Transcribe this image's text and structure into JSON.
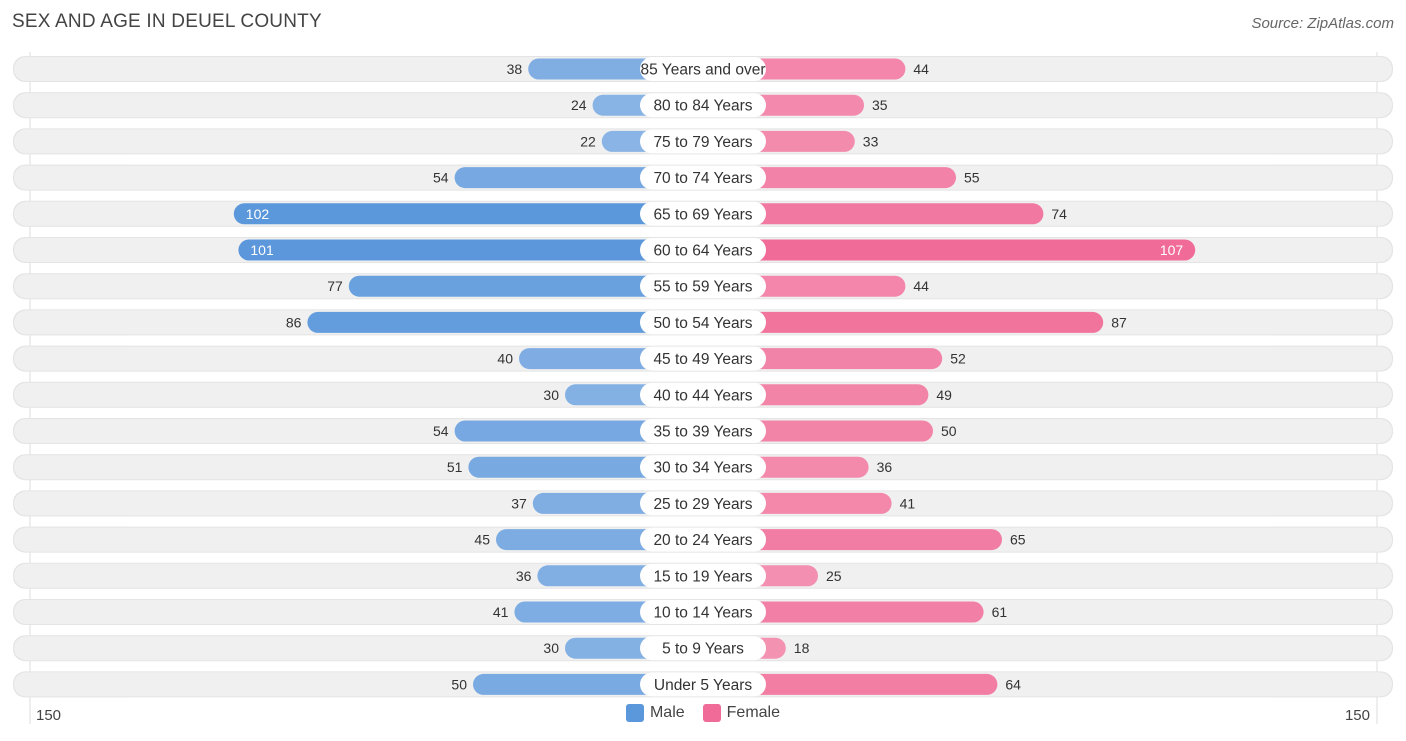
{
  "title": "SEX AND AGE IN DEUEL COUNTY",
  "source": "Source: ZipAtlas.com",
  "colors": {
    "male": "#5b97db",
    "male_light": "#a9c8ec",
    "female": "#f06b97",
    "female_light": "#f6a9c2",
    "row_bg": "#f0f0f0",
    "label_bg": "#ffffff"
  },
  "legend": {
    "male": "Male",
    "female": "Female"
  },
  "chart_data": {
    "type": "bar",
    "orientation": "horizontal-diverging",
    "title": "SEX AND AGE IN DEUEL COUNTY",
    "axis": {
      "left_max_label": "150",
      "right_max_label": "150",
      "max": 150
    },
    "categories": [
      "85 Years and over",
      "80 to 84 Years",
      "75 to 79 Years",
      "70 to 74 Years",
      "65 to 69 Years",
      "60 to 64 Years",
      "55 to 59 Years",
      "50 to 54 Years",
      "45 to 49 Years",
      "40 to 44 Years",
      "35 to 39 Years",
      "30 to 34 Years",
      "25 to 29 Years",
      "20 to 24 Years",
      "15 to 19 Years",
      "10 to 14 Years",
      "5 to 9 Years",
      "Under 5 Years"
    ],
    "series": [
      {
        "name": "Male",
        "values": [
          38,
          24,
          22,
          54,
          102,
          101,
          77,
          86,
          40,
          30,
          54,
          51,
          37,
          45,
          36,
          41,
          30,
          50
        ]
      },
      {
        "name": "Female",
        "values": [
          44,
          35,
          33,
          55,
          74,
          107,
          44,
          87,
          52,
          49,
          50,
          36,
          41,
          65,
          25,
          61,
          18,
          64
        ]
      }
    ]
  }
}
